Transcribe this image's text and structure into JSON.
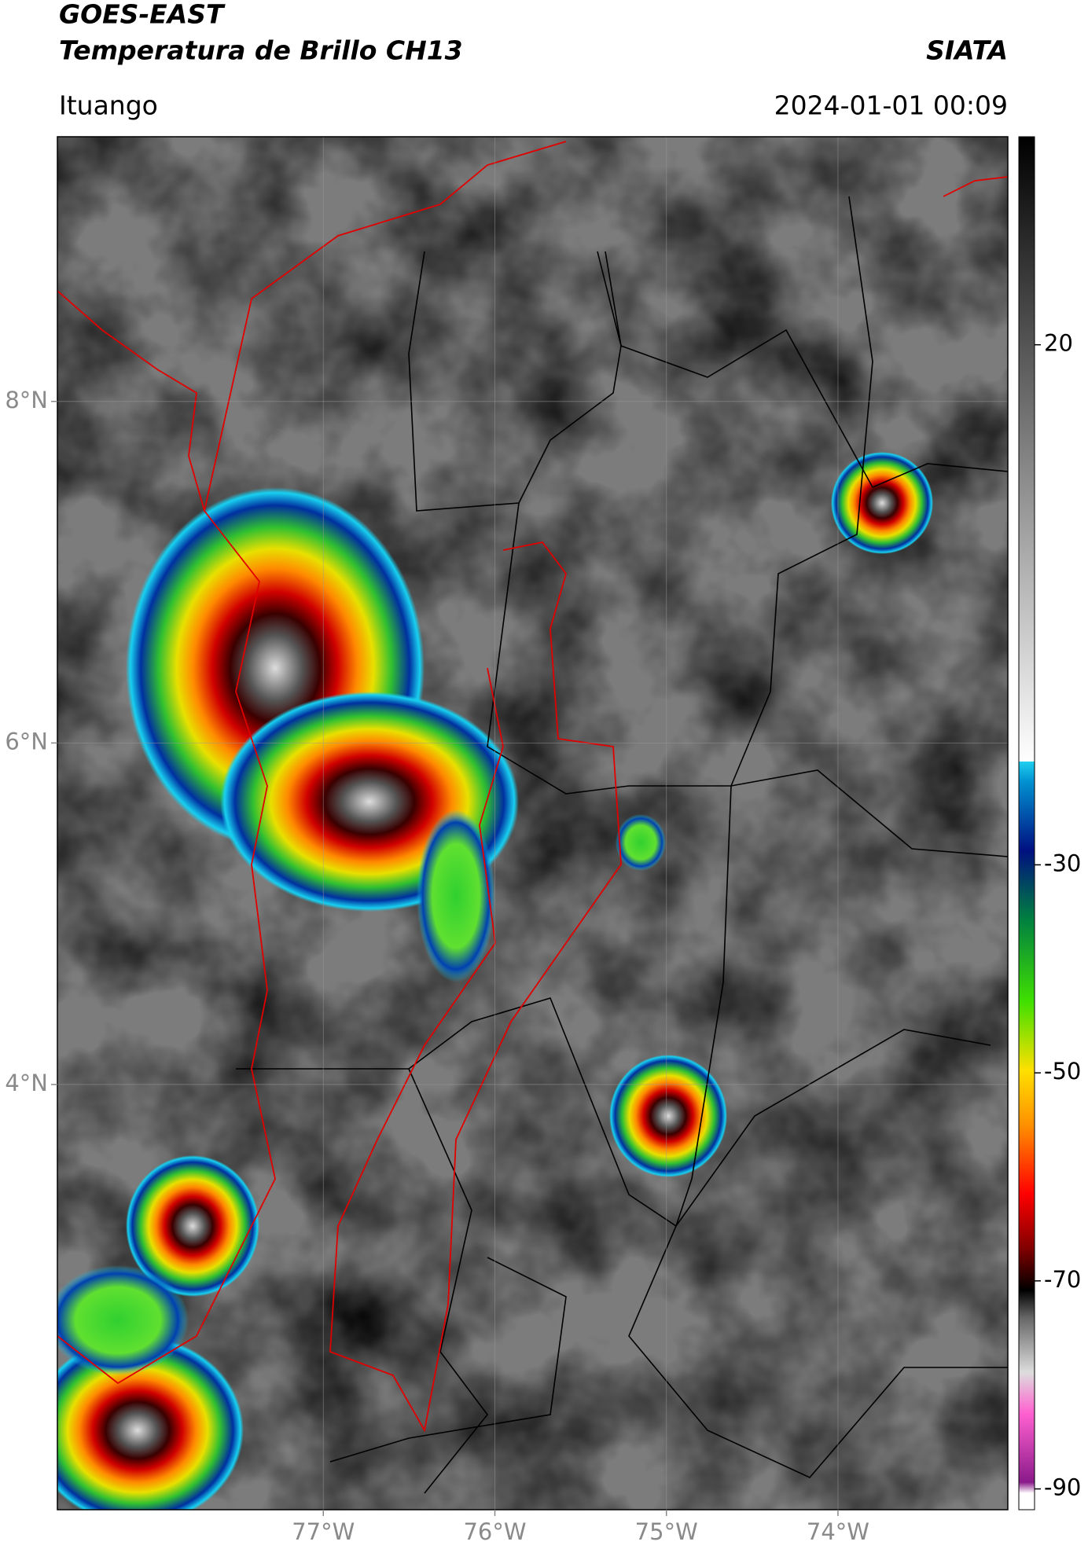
{
  "header": {
    "title": "GOES-EAST",
    "subtitle": "Temperatura de Brillo CH13",
    "source": "SIATA",
    "place": "Ituango",
    "datetime": "2024-01-01 00:09"
  },
  "map": {
    "lat_range": [
      1.51,
      9.55
    ],
    "lon_range": [
      -78.55,
      -73.01
    ],
    "lat_ticks": [
      {
        "value": 8,
        "label": "8°N"
      },
      {
        "value": 6,
        "label": "6°N"
      },
      {
        "value": 4,
        "label": "4°N"
      }
    ],
    "lon_ticks": [
      {
        "value": -77,
        "label": "77°W"
      },
      {
        "value": -76,
        "label": "76°W"
      },
      {
        "value": -75,
        "label": "75°W"
      },
      {
        "value": -74,
        "label": "74°W"
      }
    ]
  },
  "colorbar": {
    "range": [
      -92,
      40
    ],
    "ticks": [
      20,
      -30,
      -50,
      -70,
      -90
    ]
  }
}
